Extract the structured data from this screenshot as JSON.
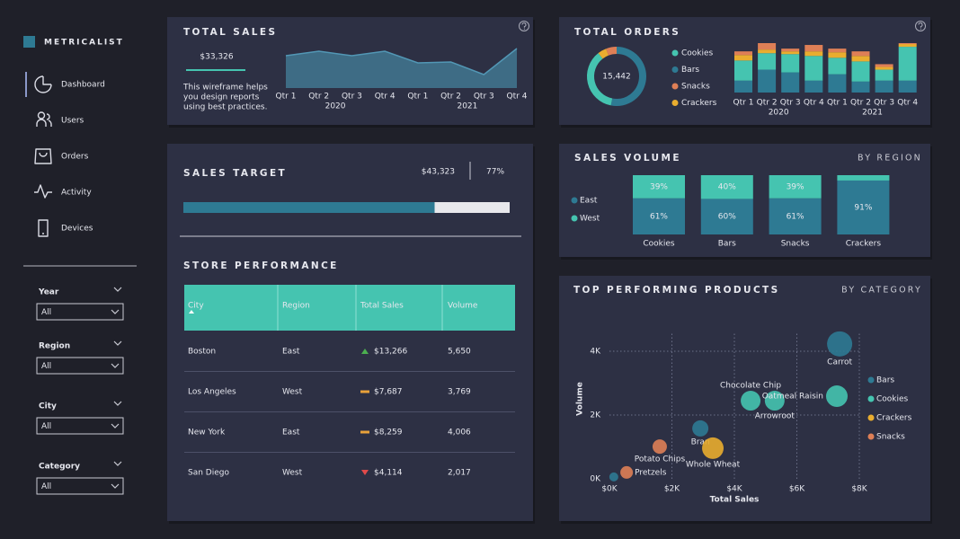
{
  "app": {
    "brand": "METRICALIST",
    "nav": [
      "Dashboard",
      "Users",
      "Orders",
      "Activity",
      "Devices"
    ],
    "active_nav": 0,
    "filters": [
      {
        "label": "Year",
        "value": "All"
      },
      {
        "label": "Region",
        "value": "All"
      },
      {
        "label": "City",
        "value": "All"
      },
      {
        "label": "Category",
        "value": "All"
      }
    ]
  },
  "total_sales": {
    "title": "TOTAL SALES",
    "value": "$33,326",
    "description": [
      "This wireframe helps",
      "you design reports",
      "using best practices."
    ]
  },
  "sales_target": {
    "title": "SALES TARGET",
    "amount": "$43,323",
    "progress": {
      "value": 77,
      "label": "77%"
    }
  },
  "store_performance": {
    "title": "STORE PERFORMANCE",
    "columns": [
      "City",
      "Region",
      "Total Sales",
      "Volume"
    ],
    "rows": [
      [
        "Boston",
        "East",
        "$13,266",
        "5,650"
      ],
      [
        "Los Angeles",
        "West",
        "$7,687",
        "3,769"
      ],
      [
        "New York",
        "East",
        "$8,259",
        "4,006"
      ],
      [
        "San Diego",
        "West",
        "$4,114",
        "2,017"
      ]
    ],
    "trends": [
      "up",
      "flat",
      "flat",
      "down"
    ]
  },
  "chart_data": [
    {
      "type": "area",
      "categories": [
        "Qtr 1",
        "Qtr 2",
        "Qtr 3",
        "Qtr 4",
        "Qtr 1",
        "Qtr 2",
        "Qtr 3",
        "Qtr 4"
      ],
      "groups": [
        "2020",
        "2021"
      ],
      "values": [
        36,
        41,
        36,
        41,
        28,
        29,
        15,
        44
      ],
      "color": "#3e6c85",
      "line_color": "#5297b5"
    },
    {
      "type": "bar",
      "stacked": true,
      "title": "TOTAL ORDERS",
      "total": "15,442",
      "categories": [
        "Qtr 1",
        "Qtr 2",
        "Qtr 3",
        "Qtr 4",
        "Qtr 1",
        "Qtr 2",
        "Qtr 3",
        "Qtr 4"
      ],
      "groups": [
        "2020",
        "2021"
      ],
      "stack_order": [
        "Bars",
        "Cookies",
        "Crackers",
        "Snacks"
      ],
      "series": [
        {
          "name": "Cookies",
          "color": "#45c4b0",
          "values": [
            22,
            18,
            20,
            27,
            18,
            22,
            12,
            37
          ],
          "share": 5600
        },
        {
          "name": "Bars",
          "color": "#2e7a93",
          "values": [
            13,
            25,
            22,
            13,
            20,
            12,
            13,
            13
          ],
          "share": 8200
        },
        {
          "name": "Snacks",
          "color": "#de7f56",
          "values": [
            4,
            7,
            3,
            7,
            4,
            5,
            3,
            1
          ],
          "share": 900
        },
        {
          "name": "Crackers",
          "color": "#e9ad2f",
          "values": [
            6,
            4,
            3,
            5,
            6,
            6,
            3,
            3
          ],
          "share": 742
        }
      ]
    },
    {
      "type": "bar",
      "stacked": true,
      "title": "SALES VOLUME",
      "subtitle": "BY REGION",
      "categories": [
        "Cookies",
        "Bars",
        "Snacks",
        "Crackers"
      ],
      "series": [
        {
          "name": "East",
          "color": "#2e7a93",
          "values": [
            61,
            60,
            61,
            91
          ],
          "value_labels": [
            "61%",
            "60%",
            "61%",
            "91%"
          ]
        },
        {
          "name": "West",
          "color": "#45c4b0",
          "values": [
            39,
            40,
            39,
            9
          ],
          "value_labels": [
            "39%",
            "40%",
            "39%",
            null
          ]
        }
      ]
    },
    {
      "type": "scatter",
      "title": "TOP PERFORMING PRODUCTS",
      "subtitle": "BY CATEGORY",
      "x_label": "Total Sales",
      "y_label": "Volume",
      "xlim": [
        0,
        8000
      ],
      "ylim": [
        0,
        4000
      ],
      "grid": true,
      "xticks": [
        {
          "value": 0,
          "label": "$0K"
        },
        {
          "value": 2000,
          "label": "$2K"
        },
        {
          "value": 4000,
          "label": "$4K"
        },
        {
          "value": 6000,
          "label": "$6K"
        },
        {
          "value": 8000,
          "label": "$8K"
        }
      ],
      "yticks": [
        {
          "value": 0,
          "label": "0K"
        },
        {
          "value": 2000,
          "label": "2K"
        },
        {
          "value": 4000,
          "label": "4K"
        }
      ],
      "series": [
        {
          "name": "Bars",
          "color": "#2e7a93",
          "labels": [
            "Carrot",
            "Bran",
            null
          ],
          "label_pos": [
            "below",
            "below",
            null
          ],
          "x": [
            7370,
            2910,
            140
          ],
          "y": [
            4230,
            1580,
            60
          ],
          "size": [
            196,
            81,
            25
          ]
        },
        {
          "name": "Cookies",
          "color": "#45c4b0",
          "labels": [
            "Chocolate Chip",
            "Arrowroot",
            "Oatmeal Raisin"
          ],
          "label_pos": [
            "above",
            "below",
            "left"
          ],
          "x": [
            4520,
            5290,
            7280
          ],
          "y": [
            2450,
            2450,
            2590
          ],
          "size": [
            121,
            121,
            144
          ]
        },
        {
          "name": "Crackers",
          "color": "#e9ad2f",
          "labels": [
            "Whole Wheat"
          ],
          "label_pos": [
            "below"
          ],
          "x": [
            3310
          ],
          "y": [
            960
          ],
          "size": [
            144
          ]
        },
        {
          "name": "Snacks",
          "color": "#de7f56",
          "labels": [
            "Potato Chips",
            "Pretzels"
          ],
          "label_pos": [
            "below",
            "right"
          ],
          "x": [
            1610,
            550
          ],
          "y": [
            1010,
            200
          ],
          "size": [
            64,
            49
          ]
        }
      ]
    }
  ]
}
